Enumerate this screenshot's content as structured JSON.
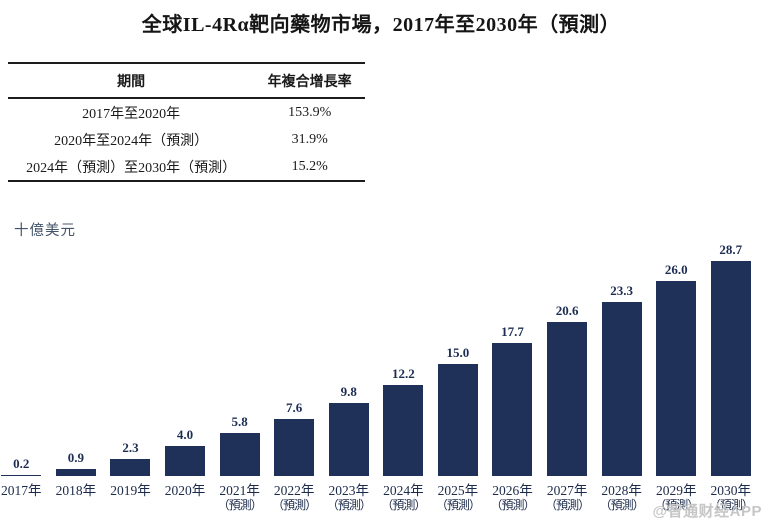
{
  "title": "全球IL-4Rα靶向藥物市場，2017年至2030年（預測）",
  "table": {
    "headers": [
      "期間",
      "年複合增長率"
    ],
    "rows": [
      {
        "period": "2017年至2020年",
        "cagr": "153.9%"
      },
      {
        "period": "2020年至2024年（預測）",
        "cagr": "31.9%"
      },
      {
        "period": "2024年（預測）至2030年（預測）",
        "cagr": "15.2%"
      }
    ]
  },
  "chart_data": {
    "type": "bar",
    "title": "全球IL-4Rα靶向藥物市場，2017年至2030年（預測）",
    "ylabel": "十億美元",
    "xlabel": "",
    "categories": [
      "2017年",
      "2018年",
      "2019年",
      "2020年",
      "2021年",
      "2022年",
      "2023年",
      "2024年",
      "2025年",
      "2026年",
      "2027年",
      "2028年",
      "2029年",
      "2030年"
    ],
    "category_notes": [
      "",
      "",
      "",
      "",
      "（預測）",
      "（預測）",
      "（預測）",
      "（預測）",
      "（預測）",
      "（預測）",
      "（預測）",
      "（預測）",
      "（預測）",
      "（預測）"
    ],
    "values": [
      0.2,
      0.9,
      2.3,
      4.0,
      5.8,
      7.6,
      9.8,
      12.2,
      15.0,
      17.7,
      20.6,
      23.3,
      26.0,
      28.7
    ],
    "value_labels": [
      "0.2",
      "0.9",
      "2.3",
      "4.0",
      "5.8",
      "7.6",
      "9.8",
      "12.2",
      "15.0",
      "17.7",
      "20.6",
      "23.3",
      "26.0",
      "28.7"
    ],
    "ylim": [
      0,
      30
    ],
    "grid": false,
    "legend": false,
    "bar_color": "#1F3159"
  },
  "watermark": "@智通财经APP"
}
